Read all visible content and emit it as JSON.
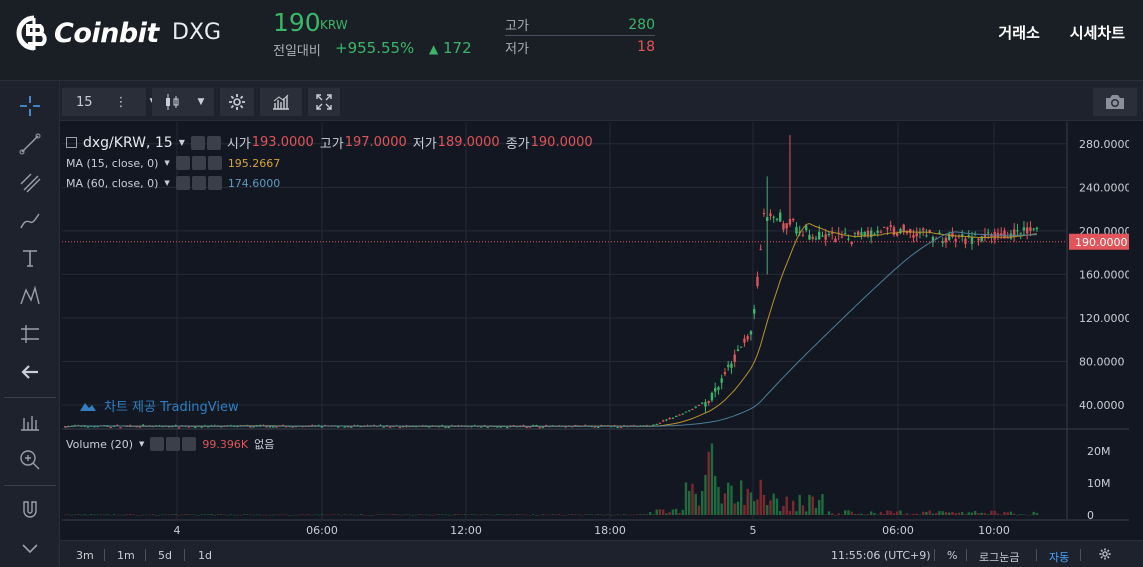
{
  "header": {
    "logo_text": "Coinbit",
    "coin_code": "DXG",
    "price": "190",
    "price_unit": "KRW",
    "prev_day_label": "전일대비",
    "change_pct": "+955.55%",
    "change_abs": "172",
    "high_label": "고가",
    "high_value": "280",
    "low_label": "저가",
    "low_value": "18",
    "nav": [
      "거래소",
      "시세차트"
    ]
  },
  "toolbar": {
    "interval": "15",
    "interval_menu": "⋮"
  },
  "legend": {
    "symbol": "dxg/KRW, 15",
    "open_label": "시가",
    "open_value": "193.0000",
    "high_label": "고가",
    "high_value": "197.0000",
    "low_label": "저가",
    "low_value": "189.0000",
    "close_label": "종가",
    "close_value": "190.0000",
    "ma15_label": "MA (15, close, 0)",
    "ma15_value": "195.2667",
    "ma60_label": "MA (60, close, 0)",
    "ma60_value": "174.6000",
    "volume_label": "Volume (20)",
    "volume_value": "99.396K",
    "volume_extra": "없음"
  },
  "watermark": "차트 제공 TradingView",
  "chart_data": {
    "type": "candlestick",
    "title": "dxg/KRW, 15",
    "y_ticks": [
      40,
      80,
      120,
      160,
      200,
      240,
      280
    ],
    "y_tick_labels": [
      "40.0000",
      "80.0000",
      "120.0000",
      "160.0000",
      "200.0000",
      "240.0000",
      "280.0000"
    ],
    "ylim": [
      18,
      300
    ],
    "x_tick_labels": [
      "4",
      "06:00",
      "12:00",
      "18:00",
      "5",
      "06:00",
      "10:00"
    ],
    "current_price_label": "190.0000",
    "current_price": 190,
    "volume_ticks": [
      "20M",
      "10M",
      "0"
    ],
    "volume_ylim": [
      0,
      26
    ],
    "colors": {
      "up": "#3cb46a",
      "down": "#e0545a",
      "ma15": "#b8922f",
      "ma60": "#4f7d95",
      "price_line": "#e0545a"
    }
  },
  "bottom": {
    "ranges": [
      "3m",
      "1m",
      "5d",
      "1d"
    ],
    "time": "11:55:06 (UTC+9)",
    "pct": "%",
    "log": "로그눈금",
    "auto": "자동"
  }
}
